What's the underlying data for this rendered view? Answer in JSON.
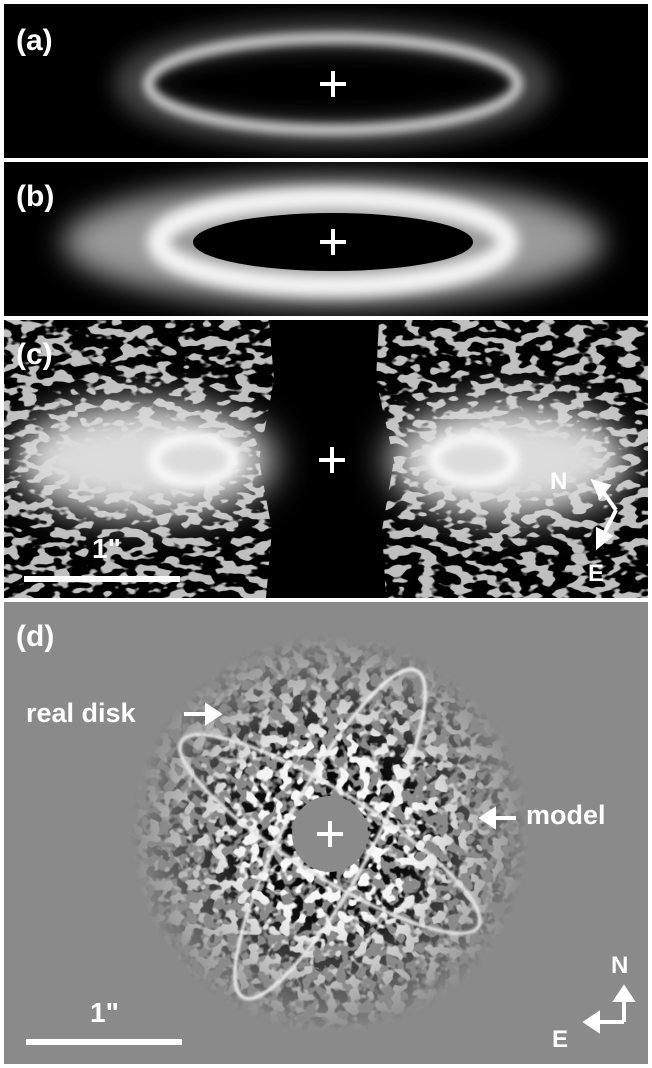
{
  "panels": [
    {
      "label": "(a)"
    },
    {
      "label": "(b)"
    },
    {
      "label": "(c)",
      "scale_label": "1\"",
      "compass": {
        "north": "N",
        "east": "E"
      }
    },
    {
      "label": "(d)",
      "scale_label": "1\"",
      "compass": {
        "north": "N",
        "east": "E"
      },
      "annotations": {
        "real_disk": "real disk",
        "model": "model"
      }
    }
  ],
  "colors": {
    "background": "#000000",
    "panel_d_background": "#8a8a8a",
    "foreground": "#ffffff"
  }
}
